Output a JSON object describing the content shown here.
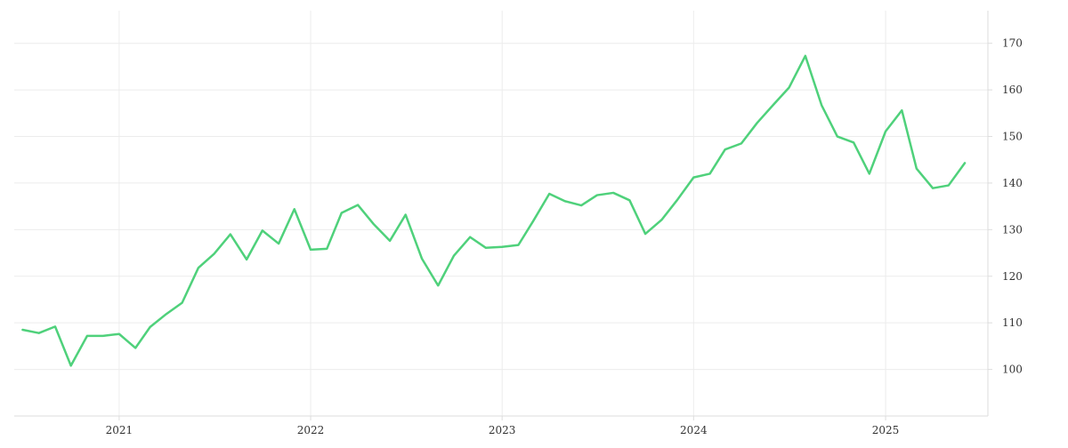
{
  "chart_data": {
    "type": "line",
    "title": "",
    "xlabel": "",
    "ylabel": "",
    "x_ticks": [
      "2021",
      "2022",
      "2023",
      "2024",
      "2025"
    ],
    "x_tick_dates": [
      "2021-01-01",
      "2022-01-01",
      "2023-01-01",
      "2024-01-01",
      "2025-01-01"
    ],
    "xlim": [
      "2020-06-15",
      "2025-07-15"
    ],
    "y_ticks": [
      100,
      110,
      120,
      130,
      140,
      150,
      160,
      170
    ],
    "ylim": [
      90,
      177
    ],
    "y_axis_side": "right",
    "grid": true,
    "legend": "none",
    "colors": {
      "line": "#4fd17b",
      "grid": "#ececec",
      "axis": "#dddddd",
      "text": "#333333"
    },
    "series": [
      {
        "x": [
          "2020-07-01",
          "2020-08-01",
          "2020-09-01",
          "2020-10-01",
          "2020-11-01",
          "2020-12-01",
          "2021-01-01",
          "2021-02-01",
          "2021-03-01",
          "2021-04-01",
          "2021-05-01",
          "2021-06-01",
          "2021-07-01",
          "2021-08-01",
          "2021-09-01",
          "2021-10-01",
          "2021-11-01",
          "2021-12-01",
          "2022-01-01",
          "2022-02-01",
          "2022-03-01",
          "2022-04-01",
          "2022-05-01",
          "2022-06-01",
          "2022-07-01",
          "2022-08-01",
          "2022-09-01",
          "2022-10-01",
          "2022-11-01",
          "2022-12-01",
          "2023-01-01",
          "2023-02-01",
          "2023-03-01",
          "2023-04-01",
          "2023-05-01",
          "2023-06-01",
          "2023-07-01",
          "2023-08-01",
          "2023-09-01",
          "2023-10-01",
          "2023-11-01",
          "2023-12-01",
          "2024-01-01",
          "2024-02-01",
          "2024-03-01",
          "2024-04-01",
          "2024-05-01",
          "2024-06-01",
          "2024-07-01",
          "2024-08-01",
          "2024-09-01",
          "2024-10-01",
          "2024-11-01",
          "2024-12-01",
          "2025-01-01",
          "2025-02-01",
          "2025-03-01",
          "2025-04-01",
          "2025-05-01",
          "2025-06-01"
        ],
        "y": [
          108.5,
          107.8,
          109.2,
          100.8,
          107.2,
          107.2,
          107.6,
          104.6,
          109.1,
          111.9,
          114.3,
          121.8,
          124.8,
          129.0,
          123.6,
          129.8,
          127.0,
          134.4,
          125.7,
          125.9,
          133.6,
          135.3,
          131.2,
          127.6,
          133.2,
          123.8,
          118.0,
          124.4,
          128.4,
          126.1,
          126.3,
          126.7,
          131.8,
          137.7,
          136.1,
          135.2,
          137.4,
          137.9,
          136.3,
          129.1,
          132.1,
          136.4,
          141.2,
          142.0,
          147.2,
          148.5,
          152.9,
          156.8,
          160.5,
          167.3,
          156.7,
          150.0,
          148.7,
          142.0,
          151.1,
          155.6,
          143.1,
          138.9,
          139.5,
          144.3
        ]
      }
    ]
  }
}
